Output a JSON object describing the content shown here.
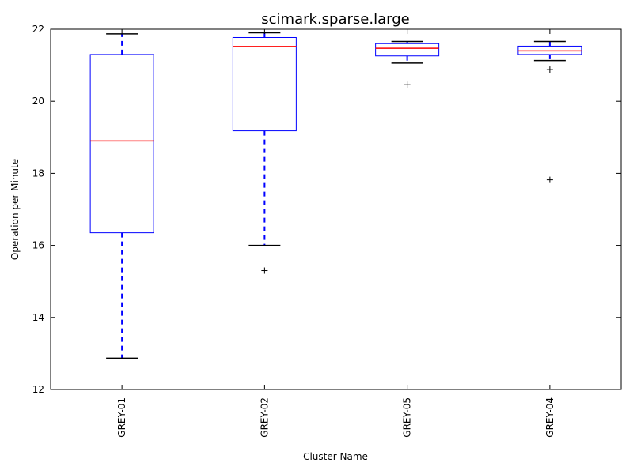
{
  "chart_data": {
    "type": "box",
    "title": "scimark.sparse.large",
    "xlabel": "Cluster Name",
    "ylabel": "Operation per Minute",
    "ylim": [
      12,
      22
    ],
    "yticks": [
      12,
      14,
      16,
      18,
      20,
      22
    ],
    "grid": false,
    "categories": [
      "GREY-01",
      "GREY-02",
      "GREY-05",
      "GREY-04"
    ],
    "boxes": [
      {
        "category": "GREY-01",
        "whisker_low": 12.87,
        "q1": 16.35,
        "median": 18.9,
        "q3": 21.3,
        "whisker_high": 21.87,
        "outliers": []
      },
      {
        "category": "GREY-02",
        "whisker_low": 16.0,
        "q1": 19.18,
        "median": 21.52,
        "q3": 21.77,
        "whisker_high": 21.9,
        "outliers": [
          15.3
        ]
      },
      {
        "category": "GREY-05",
        "whisker_low": 21.06,
        "q1": 21.26,
        "median": 21.47,
        "q3": 21.6,
        "whisker_high": 21.66,
        "outliers": [
          20.46
        ]
      },
      {
        "category": "GREY-04",
        "whisker_low": 21.13,
        "q1": 21.3,
        "median": 21.4,
        "q3": 21.53,
        "whisker_high": 21.66,
        "outliers": [
          20.88,
          17.82
        ]
      }
    ],
    "colors": {
      "box": "#0000ff",
      "median": "#ff0000",
      "whisker": "#0000ff",
      "cap": "#000000",
      "outlier": "#000000"
    }
  }
}
